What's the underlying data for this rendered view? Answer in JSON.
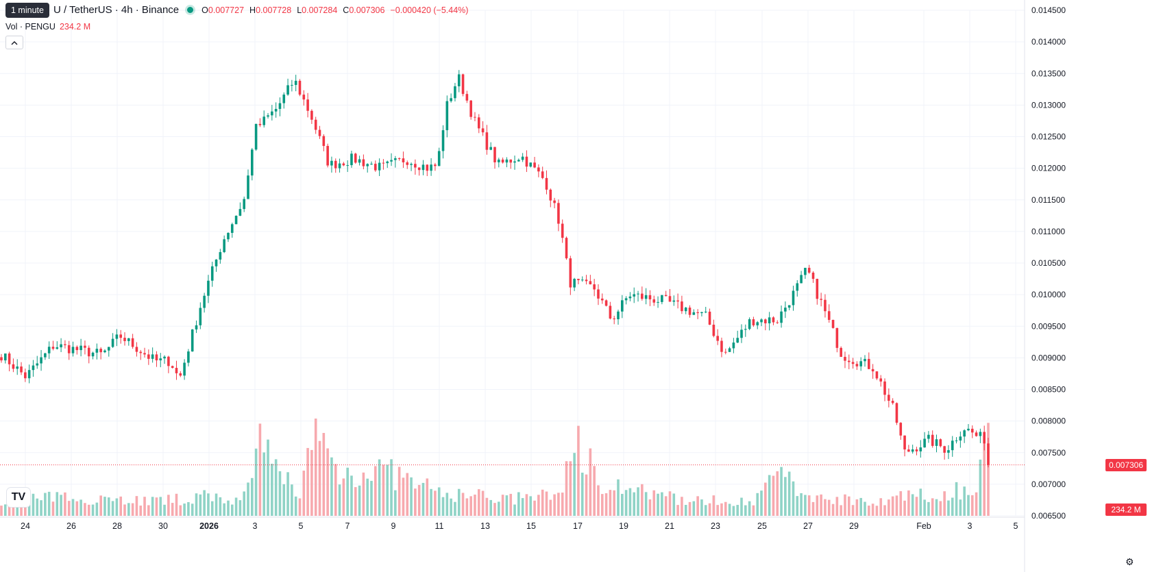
{
  "header": {
    "symbol": "U / TetherUS · 4h · Binance",
    "open_label": "O",
    "open": "0.007727",
    "high_label": "H",
    "high": "0.007728",
    "low_label": "L",
    "low": "0.007284",
    "close_label": "C",
    "close": "0.007306",
    "change": "−0.000420 (−5.44%)",
    "tooltip": "1 minute",
    "vol_label": "Vol · PENGU",
    "vol_value": "234.2 M",
    "collapse_icon": "chevron-up-icon"
  },
  "logo_text": "TV",
  "colors": {
    "up": "#089981",
    "down": "#f23645",
    "up_vol": "#8fd3c6",
    "down_vol": "#f7a9ae",
    "grid": "#f0f3fa"
  },
  "chart_data": {
    "type": "candlestick",
    "interval": "4h",
    "y_axis": {
      "position": "right",
      "min": 0.0065,
      "max": 0.0145,
      "ticks": [
        "0.014500",
        "0.014000",
        "0.013500",
        "0.013000",
        "0.012500",
        "0.012000",
        "0.011500",
        "0.011000",
        "0.010500",
        "0.010000",
        "0.009500",
        "0.009000",
        "0.008500",
        "0.008000",
        "0.007500",
        "0.007000",
        "0.006500"
      ]
    },
    "x_axis": {
      "ticks": [
        "24",
        "26",
        "28",
        "30",
        "2026",
        "3",
        "5",
        "7",
        "9",
        "11",
        "13",
        "15",
        "17",
        "19",
        "21",
        "23",
        "25",
        "27",
        "29",
        "Feb",
        "3",
        "5"
      ],
      "bold_ticks": [
        "2026"
      ]
    },
    "last_price": 0.007306,
    "last_price_label": "0.007306",
    "last_volume_label": "234.2 M",
    "candle_count": 249,
    "close_anchors": [
      [
        0,
        0.00905
      ],
      [
        14,
        0.0087
      ],
      [
        30,
        0.0092
      ],
      [
        58,
        0.00905
      ],
      [
        68,
        0.00935
      ],
      [
        88,
        0.00895
      ],
      [
        97,
        0.00895
      ],
      [
        102,
        0.00865
      ],
      [
        115,
        0.0099
      ],
      [
        127,
        0.01085
      ],
      [
        140,
        0.01155
      ],
      [
        145,
        0.0126
      ],
      [
        158,
        0.01295
      ],
      [
        168,
        0.0134
      ],
      [
        178,
        0.0128
      ],
      [
        188,
        0.01205
      ],
      [
        202,
        0.01215
      ],
      [
        218,
        0.012
      ],
      [
        232,
        0.01215
      ],
      [
        245,
        0.012
      ],
      [
        250,
        0.01205
      ],
      [
        255,
        0.01295
      ],
      [
        262,
        0.01345
      ],
      [
        272,
        0.0127
      ],
      [
        285,
        0.01205
      ],
      [
        298,
        0.0122
      ],
      [
        312,
        0.0118
      ],
      [
        320,
        0.01115
      ],
      [
        326,
        0.0102
      ],
      [
        340,
        0.0101
      ],
      [
        350,
        0.0096
      ],
      [
        360,
        0.01
      ],
      [
        380,
        0.0099
      ],
      [
        404,
        0.00965
      ],
      [
        415,
        0.00905
      ],
      [
        430,
        0.0096
      ],
      [
        445,
        0.0096
      ],
      [
        455,
        0.01005
      ],
      [
        462,
        0.0104
      ],
      [
        472,
        0.00975
      ],
      [
        482,
        0.00905
      ],
      [
        500,
        0.00885
      ],
      [
        512,
        0.00815
      ],
      [
        518,
        0.0075
      ],
      [
        532,
        0.0077
      ],
      [
        542,
        0.00755
      ],
      [
        552,
        0.0079
      ],
      [
        560,
        0.00775
      ],
      [
        564,
        0.00772
      ],
      [
        566,
        0.007306
      ]
    ],
    "volume_levels": [
      [
        0,
        0.18
      ],
      [
        20,
        0.2
      ],
      [
        40,
        0.16
      ],
      [
        55,
        0.22
      ],
      [
        60,
        0.14
      ],
      [
        62,
        0.26
      ],
      [
        65,
        0.78
      ],
      [
        70,
        0.42
      ],
      [
        75,
        0.3
      ],
      [
        79,
        0.88
      ],
      [
        85,
        0.46
      ],
      [
        95,
        0.5
      ],
      [
        105,
        0.33
      ],
      [
        110,
        0.24
      ],
      [
        120,
        0.22
      ],
      [
        128,
        0.18
      ],
      [
        135,
        0.2
      ],
      [
        140,
        0.26
      ],
      [
        145,
        0.78
      ],
      [
        150,
        0.4
      ],
      [
        160,
        0.26
      ],
      [
        170,
        0.18
      ],
      [
        180,
        0.16
      ],
      [
        190,
        0.18
      ],
      [
        195,
        0.52
      ],
      [
        200,
        0.24
      ],
      [
        210,
        0.18
      ],
      [
        220,
        0.17
      ],
      [
        230,
        0.22
      ],
      [
        236,
        0.2
      ],
      [
        240,
        0.3
      ],
      [
        244,
        0.2
      ],
      [
        248,
        0.88
      ],
      [
        249,
        0.16
      ]
    ],
    "up_days_fraction_hint": "mixed"
  }
}
